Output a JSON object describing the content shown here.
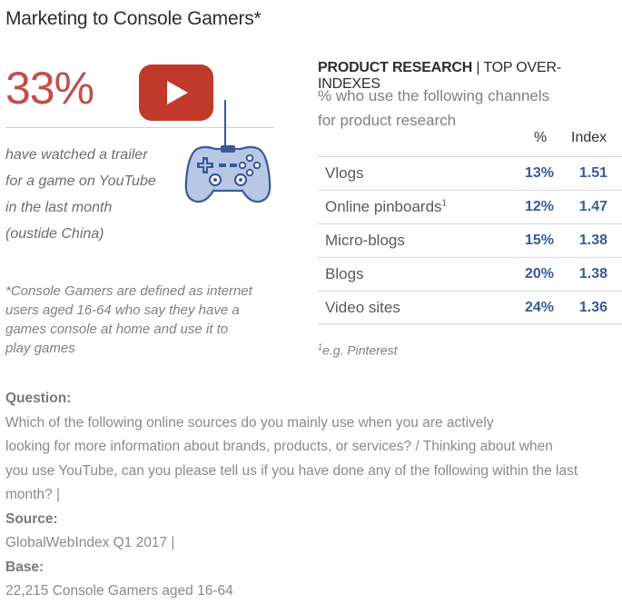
{
  "title": "Marketing to Console Gamers*",
  "stat": {
    "value": "33%",
    "lines": [
      "have watched a trailer",
      "for a game on YouTube",
      "in the last month",
      "(oustide China)"
    ]
  },
  "definition_lines": [
    "*Console Gamers are defined as internet",
    "users aged 16-64 who say they have a",
    "games console at home and use it to",
    "play games"
  ],
  "research": {
    "heading_bold": "PRODUCT RESEARCH",
    "heading_sep": " | ",
    "heading_rest": "TOP OVER-INDEXES",
    "sub_lines": [
      "% who use the following channels",
      "for product research"
    ],
    "col_pct": "%",
    "col_index": "Index",
    "footnote_mark": "1",
    "footnote_text": "e.g. Pinterest"
  },
  "chart_data": {
    "type": "table",
    "columns": [
      "%",
      "Index"
    ],
    "rows": [
      {
        "channel": "Vlogs",
        "sup": "",
        "pct": "13%",
        "index": "1.51"
      },
      {
        "channel": "Online pinboards",
        "sup": "1",
        "pct": "12%",
        "index": "1.47"
      },
      {
        "channel": "Micro-blogs",
        "sup": "",
        "pct": "15%",
        "index": "1.38"
      },
      {
        "channel": "Blogs",
        "sup": "",
        "pct": "20%",
        "index": "1.38"
      },
      {
        "channel": "Video sites",
        "sup": "",
        "pct": "24%",
        "index": "1.36"
      }
    ]
  },
  "question": {
    "q_label": "Question:",
    "line1": " Which of the following online sources do you mainly use when you are actively",
    "line2": "looking for more information about brands, products, or services? / Thinking about when",
    "line3": "you use YouTube, can you please tell us if you have done any of the following within the last",
    "line4_a": "month? |  ",
    "source_label": "Source:",
    "source_text": " GlobalWebIndex Q1 2017  |  ",
    "base_label": "Base:",
    "base_text": " 22,215 Console Gamers aged 16-64"
  },
  "colors": {
    "stat_red": "#c0504d",
    "youtube_red": "#c0392b",
    "table_blue": "#3a5a99",
    "controller_fill": "#b9c7e6",
    "controller_stroke": "#3a5a99"
  },
  "icons": {
    "youtube": "youtube-play-icon",
    "controller": "gamepad-icon"
  }
}
